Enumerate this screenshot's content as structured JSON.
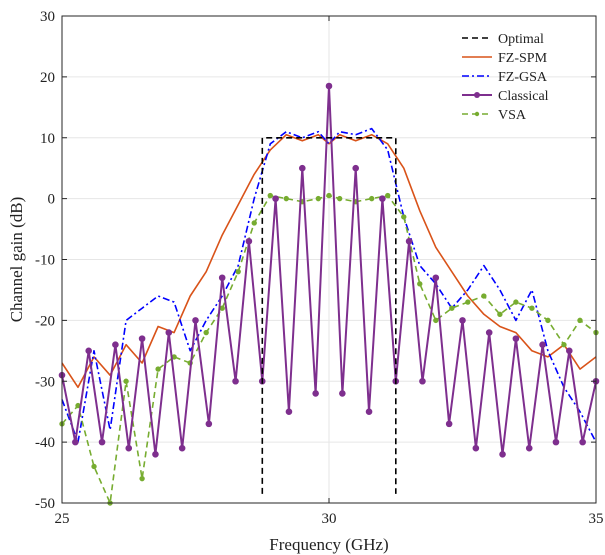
{
  "chart_data": {
    "type": "line",
    "xlabel": "Frequency (GHz)",
    "ylabel": "Channel gain (dB)",
    "xlim": [
      25,
      35
    ],
    "ylim": [
      -50,
      30
    ],
    "xticks": [
      25,
      30,
      35
    ],
    "yticks": [
      -50,
      -40,
      -30,
      -20,
      -10,
      0,
      10,
      20,
      30
    ],
    "xtick_labels": [
      "25",
      "30",
      "35"
    ],
    "ytick_labels": [
      "-50",
      "-40",
      "-30",
      "-20",
      "-10",
      "0",
      "10",
      "20",
      "30"
    ],
    "grid": true,
    "legend_position": "top-right",
    "series": [
      {
        "name": "Optimal",
        "color": "#000000",
        "style": "dashed",
        "marker": "none",
        "x": [
          28.75,
          28.75,
          31.25,
          31.25
        ],
        "y": [
          -48.5,
          10,
          10,
          -48.5
        ]
      },
      {
        "name": "FZ-SPM",
        "color": "#D95319",
        "style": "solid",
        "marker": "none",
        "x": [
          25.0,
          25.3,
          25.6,
          25.9,
          26.2,
          26.5,
          26.8,
          27.1,
          27.4,
          27.7,
          28.0,
          28.3,
          28.6,
          28.9,
          29.2,
          29.5,
          29.8,
          30.0,
          30.2,
          30.5,
          30.8,
          31.1,
          31.4,
          31.7,
          32.0,
          32.3,
          32.6,
          32.9,
          33.2,
          33.5,
          33.8,
          34.1,
          34.4,
          34.7,
          35.0
        ],
        "y": [
          -27,
          -31,
          -26,
          -29,
          -24,
          -27,
          -21,
          -22,
          -16,
          -12,
          -6,
          -1,
          4,
          8,
          10.5,
          9.5,
          10.5,
          9,
          10.5,
          9.5,
          10.5,
          9,
          5,
          -2,
          -8,
          -12,
          -16,
          -19,
          -21,
          -22,
          -25,
          -26,
          -24,
          -28,
          -26
        ]
      },
      {
        "name": "FZ-GSA",
        "color": "#0000FF",
        "style": "dashdot",
        "marker": "none",
        "x": [
          25.0,
          25.3,
          25.6,
          25.9,
          26.2,
          26.5,
          26.8,
          27.1,
          27.4,
          27.7,
          28.0,
          28.3,
          28.6,
          28.9,
          29.2,
          29.5,
          29.8,
          30.0,
          30.2,
          30.5,
          30.8,
          31.1,
          31.4,
          31.7,
          32.0,
          32.3,
          32.6,
          32.9,
          33.2,
          33.5,
          33.8,
          34.1,
          34.4,
          34.7,
          35.0
        ],
        "y": [
          -33,
          -40,
          -25,
          -38,
          -20,
          -18,
          -16,
          -17,
          -25,
          -20,
          -16,
          -11,
          0,
          9,
          11,
          10,
          11,
          9,
          11,
          10.5,
          11.5,
          8,
          -3,
          -11,
          -14,
          -18,
          -15,
          -11,
          -15,
          -20,
          -15,
          -25,
          -31,
          -35,
          -40
        ]
      },
      {
        "name": "Classical",
        "color": "#7E2F8E",
        "style": "solid",
        "marker": "circle",
        "x": [
          25.0,
          25.25,
          25.5,
          25.75,
          26.0,
          26.25,
          26.5,
          26.75,
          27.0,
          27.25,
          27.5,
          27.75,
          28.0,
          28.25,
          28.5,
          28.75,
          29.0,
          29.25,
          29.5,
          29.75,
          30.0,
          30.25,
          30.5,
          30.75,
          31.0,
          31.25,
          31.5,
          31.75,
          32.0,
          32.25,
          32.5,
          32.75,
          33.0,
          33.25,
          33.5,
          33.75,
          34.0,
          34.25,
          34.5,
          34.75,
          35.0
        ],
        "y": [
          -29,
          -40,
          -25,
          -40,
          -24,
          -41,
          -23,
          -42,
          -22,
          -41,
          -20,
          -37,
          -13,
          -30,
          -7,
          -30,
          0,
          -35,
          5,
          -32,
          18.5,
          -32,
          5,
          -35,
          0,
          -30,
          -7,
          -30,
          -13,
          -37,
          -20,
          -41,
          -22,
          -42,
          -23,
          -41,
          -24,
          -40,
          -25,
          -40,
          -30
        ]
      },
      {
        "name": "VSA",
        "color": "#77AC30",
        "style": "dashed",
        "marker": "dot",
        "x": [
          25.0,
          25.3,
          25.6,
          25.9,
          26.2,
          26.5,
          26.8,
          27.1,
          27.4,
          27.7,
          28.0,
          28.3,
          28.6,
          28.9,
          29.2,
          29.5,
          29.8,
          30.0,
          30.2,
          30.5,
          30.8,
          31.1,
          31.4,
          31.7,
          32.0,
          32.3,
          32.6,
          32.9,
          33.2,
          33.5,
          33.8,
          34.1,
          34.4,
          34.7,
          35.0
        ],
        "y": [
          -37,
          -34,
          -44,
          -50,
          -30,
          -46,
          -28,
          -26,
          -27,
          -22,
          -18,
          -12,
          -4,
          0.5,
          0,
          -0.5,
          0,
          0.5,
          0,
          -0.5,
          0,
          0.5,
          -3,
          -14,
          -20,
          -18,
          -17,
          -16,
          -19,
          -17,
          -18,
          -20,
          -24,
          -20,
          -22
        ]
      }
    ]
  }
}
